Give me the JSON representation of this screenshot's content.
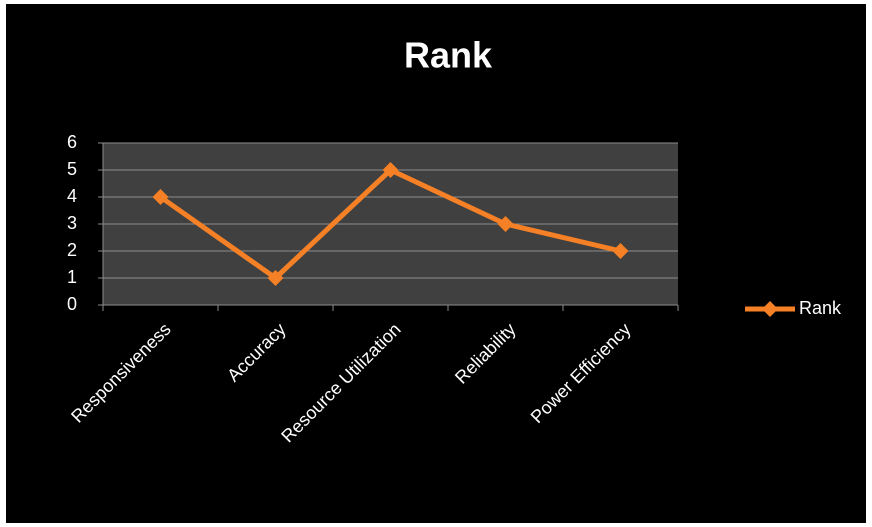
{
  "chart_data": {
    "type": "line",
    "title": "Rank",
    "categories": [
      "Responsiveness",
      "Accuracy",
      "Resource Utilization",
      "Reliability",
      "Power Efficiency"
    ],
    "series": [
      {
        "name": "Rank",
        "color": "#f58025",
        "values": [
          4,
          1,
          5,
          3,
          2
        ]
      }
    ],
    "ylim": [
      0,
      6
    ],
    "yticks": [
      0,
      1,
      2,
      3,
      4,
      5,
      6
    ],
    "grid": true,
    "legend": "right"
  }
}
